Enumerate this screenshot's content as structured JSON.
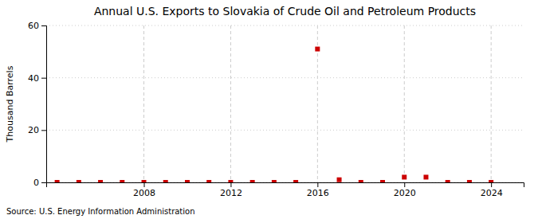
{
  "chart_data": {
    "type": "scatter",
    "title": "Annual U.S. Exports to Slovakia of Crude Oil and Petroleum Products",
    "y_label": "Thousand Barrels",
    "annotations": [
      "Source: U.S. Energy Information Administration"
    ],
    "x": [
      2004,
      2005,
      2006,
      2007,
      2008,
      2009,
      2010,
      2011,
      2012,
      2013,
      2014,
      2015,
      2016,
      2017,
      2018,
      2019,
      2020,
      2021,
      2022,
      2023,
      2024
    ],
    "values": [
      0,
      0,
      0,
      0,
      0,
      0,
      0,
      0,
      0,
      0,
      0,
      0,
      51,
      1,
      0,
      0,
      2,
      2,
      0,
      0,
      0
    ],
    "color": "#cc0000",
    "marker": "square",
    "xlim": [
      2003.5,
      2025.5
    ],
    "xticks": [
      2008,
      2012,
      2016,
      2020,
      2024
    ],
    "ylim": [
      0,
      60
    ],
    "yticks": [
      0,
      20,
      40,
      60
    ],
    "grid": true
  }
}
